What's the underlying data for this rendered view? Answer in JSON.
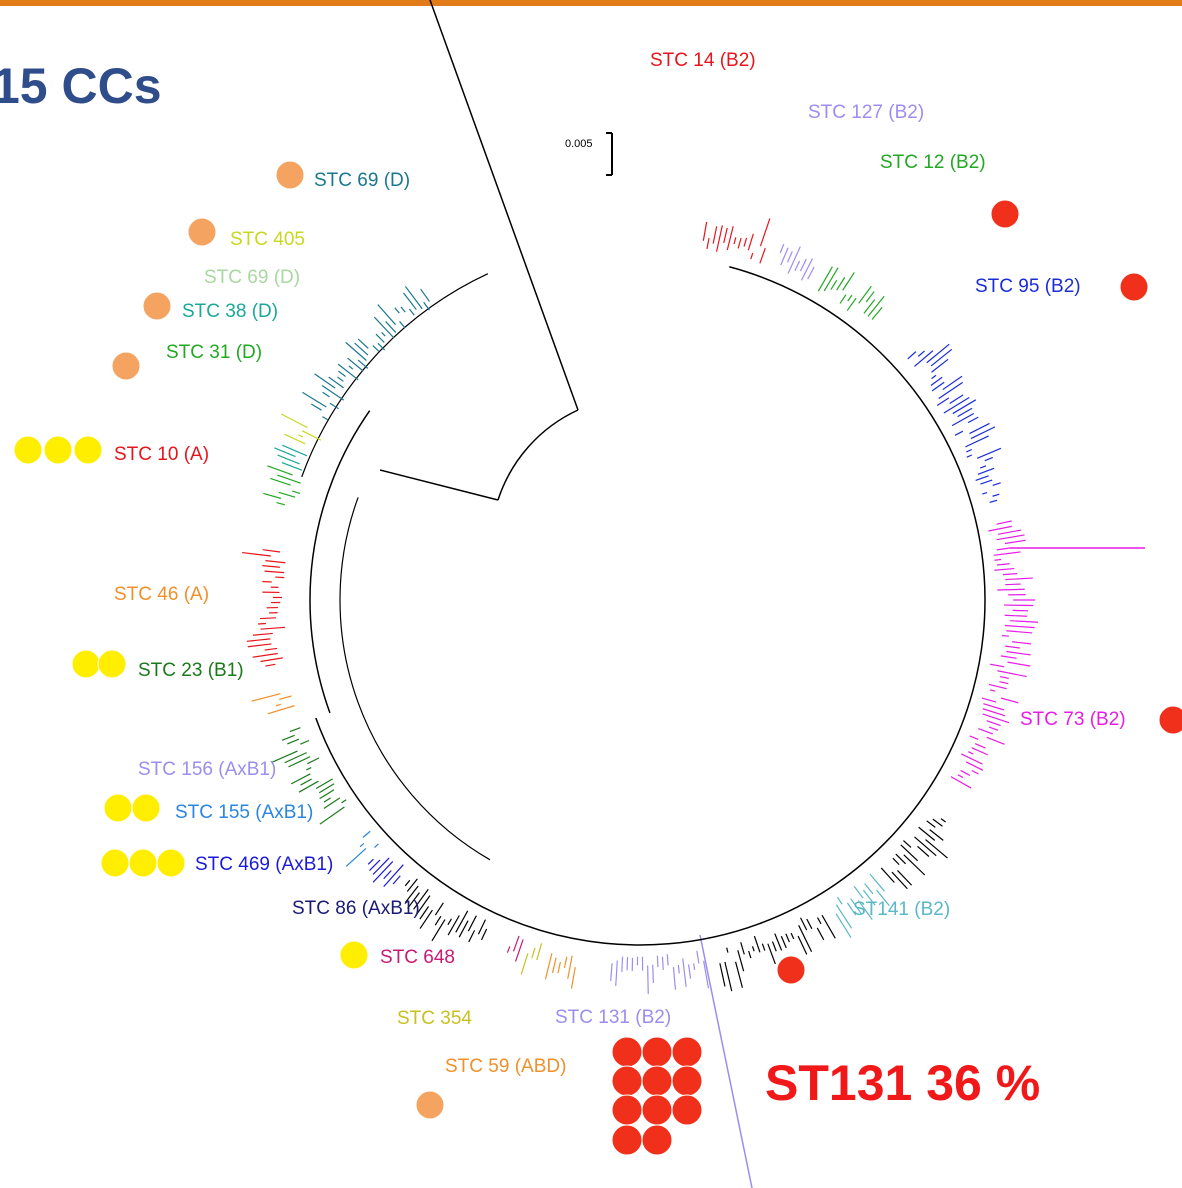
{
  "header": {
    "title": "15 CCs"
  },
  "scale_bar": {
    "label": "0.005"
  },
  "clades": [
    {
      "label": "STC 14 (B2)",
      "color": "#e8141b"
    },
    {
      "label": "STC 127 (B2)",
      "color": "#a08cf0"
    },
    {
      "label": "STC 12 (B2)",
      "color": "#22a822"
    },
    {
      "label": "STC 95 (B2)",
      "color": "#1a2cd8"
    },
    {
      "label": "STC 73 (B2)",
      "color": "#e61ce6"
    },
    {
      "label": "ST141 (B2)",
      "color": "#5ab8c8"
    },
    {
      "label": "STC 131 (B2)",
      "color": "#9a8ef0"
    },
    {
      "label": "STC 59 (ABD)",
      "color": "#f0902a"
    },
    {
      "label": "STC 354",
      "color": "#c8c020"
    },
    {
      "label": "STC 648",
      "color": "#c81a78"
    },
    {
      "label": "STC 86 (AxB1)",
      "color": "#1a1a7a"
    },
    {
      "label": "STC 469 (AxB1)",
      "color": "#1a1ad8"
    },
    {
      "label": "STC 155 (AxB1)",
      "color": "#2a86e0"
    },
    {
      "label": "STC 156 (AxB1)",
      "color": "#9a8ef0"
    },
    {
      "label": "STC 23 (B1)",
      "color": "#1a7a1a"
    },
    {
      "label": "STC 46 (A)",
      "color": "#f0902a"
    },
    {
      "label": "STC 10 (A)",
      "color": "#e8141b"
    },
    {
      "label": "STC 31 (D)",
      "color": "#22a822"
    },
    {
      "label": "STC 38 (D)",
      "color": "#1aa89a"
    },
    {
      "label": "STC 69 (D)",
      "color": "#a8d8a0"
    },
    {
      "label": "STC 405",
      "color": "#c8d820"
    },
    {
      "label": "STC 69 (D)",
      "color": "#1a7890"
    }
  ],
  "annotation": "ST131 36 %"
}
